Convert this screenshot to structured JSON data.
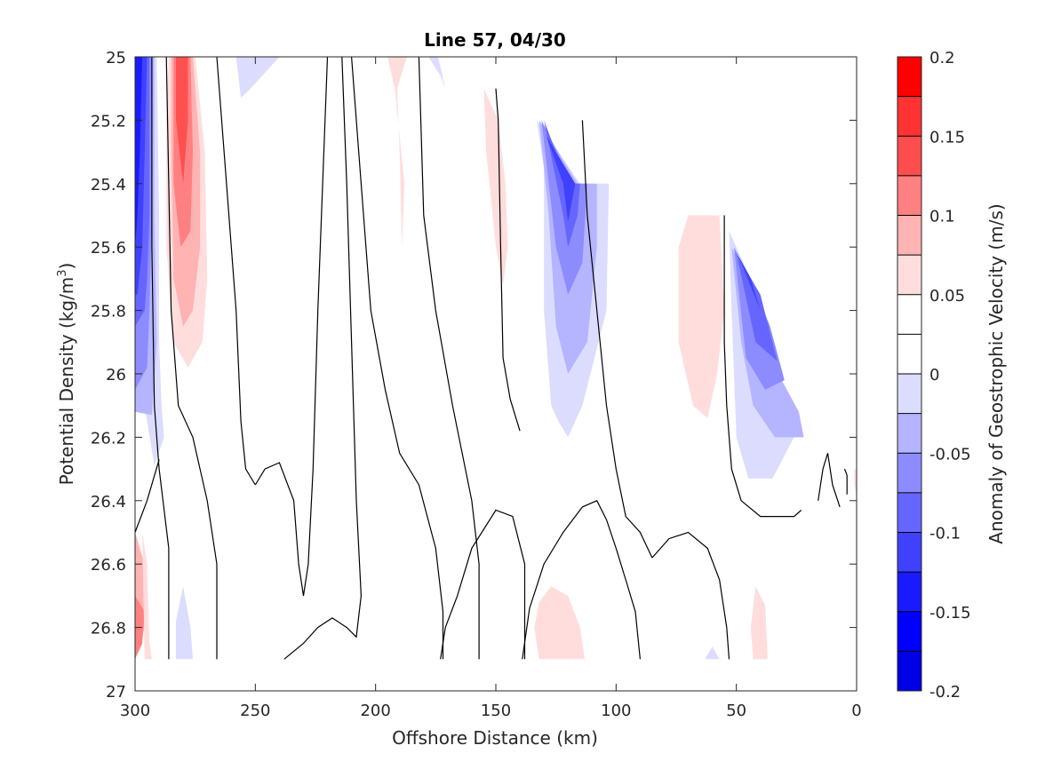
{
  "chart_data": {
    "type": "contour",
    "title": "Line 57, 04/30",
    "xlabel": "Offshore Distance (km)",
    "ylabel": "Potential Density (kg/m³)",
    "xlim": [
      300,
      0
    ],
    "ylim": [
      25,
      27
    ],
    "x_ticks": [
      "300",
      "250",
      "200",
      "150",
      "100",
      "50",
      "0"
    ],
    "y_ticks": [
      "25",
      "25.2",
      "25.4",
      "25.6",
      "25.8",
      "26",
      "26.2",
      "26.4",
      "26.6",
      "26.8",
      "27"
    ],
    "colorbar": {
      "label": "Anomaly of Geostrophic Velocity (m/s)",
      "range": [
        -0.2,
        0.2
      ],
      "ticks": [
        "0.2",
        "0.15",
        "0.1",
        "0.05",
        "0",
        "-0.05",
        "-0.1",
        "-0.15",
        "-0.2"
      ],
      "levels": [
        0.2,
        0.175,
        0.15,
        0.125,
        0.1,
        0.075,
        0.05,
        0.025,
        0,
        -0.025,
        -0.05,
        -0.075,
        -0.1,
        -0.125,
        -0.15,
        -0.175,
        -0.2
      ],
      "colors": [
        "#ff0000",
        "#ff3333",
        "#ff4d4d",
        "#ff8080",
        "#ffb3b3",
        "#ffdddd",
        "#ffffff",
        "#ffffff",
        "#dcdcff",
        "#b4b4ff",
        "#8c8cff",
        "#6666ff",
        "#4040ff",
        "#1a1aff",
        "#0000ff",
        "#0000e6"
      ]
    },
    "zero_contours": [
      [
        [
          238,
          26.9
        ],
        [
          230,
          26.85
        ],
        [
          224,
          26.8
        ],
        [
          218,
          26.77
        ],
        [
          212,
          26.8
        ],
        [
          208,
          26.83
        ],
        [
          206,
          26.7
        ],
        [
          208,
          26.4
        ],
        [
          210,
          25.9
        ],
        [
          212,
          25.4
        ],
        [
          214,
          25.0
        ]
      ],
      [
        [
          172,
          26.9
        ],
        [
          172,
          26.75
        ],
        [
          175,
          26.55
        ],
        [
          182,
          26.35
        ],
        [
          190,
          26.25
        ],
        [
          196,
          26.05
        ],
        [
          202,
          25.8
        ],
        [
          206,
          25.4
        ],
        [
          210,
          25.0
        ]
      ],
      [
        [
          157,
          26.9
        ],
        [
          157,
          26.6
        ],
        [
          160,
          26.4
        ],
        [
          168,
          26.1
        ],
        [
          175,
          25.8
        ],
        [
          180,
          25.5
        ],
        [
          182,
          25.0
        ]
      ],
      [
        [
          138,
          26.9
        ],
        [
          138,
          26.6
        ],
        [
          143,
          26.45
        ],
        [
          150,
          26.43
        ],
        [
          160,
          26.55
        ],
        [
          166,
          26.7
        ],
        [
          171,
          26.8
        ],
        [
          173,
          26.9
        ]
      ],
      [
        [
          90,
          26.9
        ],
        [
          92,
          26.75
        ],
        [
          96,
          26.65
        ],
        [
          100,
          26.55
        ],
        [
          104,
          26.46
        ],
        [
          108,
          26.4
        ],
        [
          114,
          26.42
        ],
        [
          122,
          26.5
        ],
        [
          130,
          26.6
        ],
        [
          136,
          26.74
        ],
        [
          139,
          26.9
        ]
      ],
      [
        [
          85,
          26.58
        ],
        [
          90,
          26.5
        ],
        [
          96,
          26.45
        ],
        [
          100,
          26.3
        ],
        [
          104,
          26.1
        ],
        [
          108,
          25.8
        ],
        [
          112,
          25.5
        ],
        [
          114,
          25.2
        ]
      ],
      [
        [
          85,
          26.58
        ],
        [
          78,
          26.52
        ],
        [
          70,
          26.5
        ],
        [
          62,
          26.55
        ],
        [
          57,
          26.65
        ],
        [
          54,
          26.8
        ],
        [
          53,
          26.9
        ]
      ],
      [
        [
          140,
          26.18
        ],
        [
          144,
          26.08
        ],
        [
          147,
          25.95
        ],
        [
          148,
          25.6
        ],
        [
          149,
          25.2
        ],
        [
          150,
          25.1
        ]
      ],
      [
        [
          23,
          26.43
        ],
        [
          26,
          26.45
        ],
        [
          40,
          26.45
        ],
        [
          48,
          26.4
        ],
        [
          52,
          26.3
        ],
        [
          54,
          26.1
        ],
        [
          55,
          25.9
        ],
        [
          55,
          25.7
        ],
        [
          55,
          25.5
        ]
      ],
      [
        [
          7,
          26.42
        ],
        [
          10,
          26.35
        ],
        [
          12,
          26.25
        ],
        [
          14,
          26.3
        ],
        [
          16,
          26.4
        ]
      ],
      [
        [
          4,
          26.38
        ],
        [
          4,
          26.32
        ],
        [
          5,
          26.3
        ]
      ],
      [
        [
          290,
          26.27
        ],
        [
          295,
          26.4
        ],
        [
          300,
          26.5
        ]
      ],
      [
        [
          286,
          26.9
        ],
        [
          286,
          26.55
        ],
        [
          290,
          26.3
        ],
        [
          292,
          26.1
        ],
        [
          293,
          25.6
        ],
        [
          293,
          25.2
        ],
        [
          293,
          25.0
        ]
      ],
      [
        [
          266,
          26.9
        ],
        [
          266,
          26.6
        ],
        [
          270,
          26.4
        ],
        [
          276,
          26.2
        ],
        [
          282,
          26.1
        ],
        [
          285,
          25.8
        ],
        [
          286,
          25.4
        ],
        [
          287,
          25.0
        ]
      ],
      [
        [
          250,
          26.35
        ],
        [
          254,
          26.3
        ],
        [
          256,
          26.15
        ],
        [
          258,
          25.8
        ],
        [
          262,
          25.4
        ],
        [
          266,
          25.0
        ]
      ],
      [
        [
          250,
          26.35
        ],
        [
          246,
          26.3
        ],
        [
          240,
          26.28
        ],
        [
          234,
          26.4
        ],
        [
          232,
          26.6
        ],
        [
          230,
          26.7
        ],
        [
          228,
          26.6
        ],
        [
          226,
          26.3
        ],
        [
          224,
          25.8
        ],
        [
          222,
          25.4
        ],
        [
          220,
          25.0
        ]
      ]
    ]
  }
}
